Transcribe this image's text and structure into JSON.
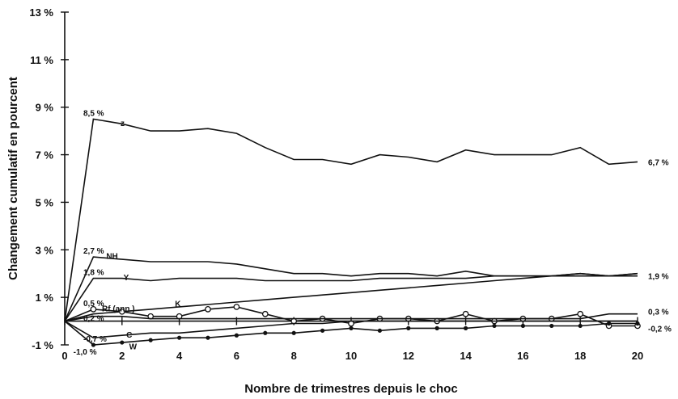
{
  "chart_data": {
    "type": "line",
    "xlabel": "Nombre de trimestres depuis le choc",
    "ylabel": "Changement cumulatif en pourcent",
    "xlim": [
      0,
      20
    ],
    "ylim": [
      -1,
      13
    ],
    "x_ticks": [
      0,
      2,
      4,
      6,
      8,
      10,
      12,
      14,
      16,
      18,
      20
    ],
    "y_ticks": [
      -1,
      1,
      3,
      5,
      7,
      9,
      11,
      13
    ],
    "y_tick_labels": [
      "-1 %",
      "1 %",
      "3 %",
      "5 %",
      "7 %",
      "9 %",
      "11 %",
      "13 %"
    ],
    "x": [
      0,
      1,
      2,
      3,
      4,
      5,
      6,
      7,
      8,
      9,
      10,
      11,
      12,
      13,
      14,
      15,
      16,
      17,
      18,
      19,
      20
    ],
    "grid": false,
    "series": [
      {
        "name": "z",
        "marker": "none",
        "values": [
          0,
          8.5,
          8.3,
          8.0,
          8.0,
          8.1,
          7.9,
          7.3,
          6.8,
          6.8,
          6.6,
          7.0,
          6.9,
          6.7,
          7.2,
          7.0,
          7.0,
          7.0,
          7.3,
          6.6,
          6.7
        ]
      },
      {
        "name": "NH",
        "marker": "none",
        "values": [
          0,
          2.7,
          2.6,
          2.5,
          2.5,
          2.5,
          2.4,
          2.2,
          2.0,
          2.0,
          1.9,
          2.0,
          2.0,
          1.9,
          2.1,
          1.9,
          1.9,
          1.9,
          2.0,
          1.9,
          1.9
        ]
      },
      {
        "name": "Y",
        "marker": "none",
        "values": [
          0,
          1.8,
          1.8,
          1.7,
          1.8,
          1.8,
          1.8,
          1.7,
          1.7,
          1.7,
          1.7,
          1.8,
          1.8,
          1.8,
          1.8,
          1.9,
          1.9,
          1.9,
          2.0,
          1.9,
          2.0
        ]
      },
      {
        "name": "K",
        "marker": "none",
        "values": [
          0,
          0.3,
          0.4,
          0.5,
          0.6,
          0.7,
          0.8,
          0.9,
          1.0,
          1.1,
          1.2,
          1.3,
          1.4,
          1.5,
          1.6,
          1.7,
          1.8,
          1.9,
          1.9,
          1.9,
          2.0
        ]
      },
      {
        "name": "Rf (ann.)",
        "marker": "open-circle",
        "values": [
          0,
          0.5,
          0.4,
          0.2,
          0.2,
          0.5,
          0.6,
          0.3,
          0.0,
          0.1,
          -0.1,
          0.1,
          0.1,
          0.0,
          0.3,
          0.0,
          0.1,
          0.1,
          0.3,
          -0.2,
          -0.2
        ]
      },
      {
        "name": "",
        "marker": "none",
        "values": [
          0,
          0.2,
          0.2,
          0.1,
          0.1,
          0.1,
          0.1,
          0.1,
          0.1,
          0.1,
          0.1,
          0.1,
          0.1,
          0.1,
          0.1,
          0.1,
          0.1,
          0.1,
          0.1,
          0.3,
          0.3
        ]
      },
      {
        "name": "C",
        "marker": "none",
        "values": [
          0,
          -0.7,
          -0.6,
          -0.5,
          -0.5,
          -0.4,
          -0.3,
          -0.2,
          -0.1,
          -0.1,
          0.0,
          0.0,
          0.0,
          0.0,
          0.0,
          0.0,
          0.0,
          0.0,
          0.0,
          0.0,
          0.0
        ]
      },
      {
        "name": "W",
        "marker": "filled-dot",
        "values": [
          0,
          -1.0,
          -0.9,
          -0.8,
          -0.7,
          -0.7,
          -0.6,
          -0.5,
          -0.5,
          -0.4,
          -0.3,
          -0.4,
          -0.3,
          -0.3,
          -0.3,
          -0.2,
          -0.2,
          -0.2,
          -0.2,
          -0.1,
          -0.1
        ]
      }
    ],
    "annotations": [
      {
        "text": "8,5 %",
        "x": 1,
        "y": 8.5
      },
      {
        "text": "2,7 %",
        "x": 1,
        "y": 2.7
      },
      {
        "text": "1,8 %",
        "x": 1,
        "y": 1.8
      },
      {
        "text": "0,5 %",
        "x": 1,
        "y": 0.5
      },
      {
        "text": "0,2 %",
        "x": 1,
        "y": 0.2
      },
      {
        "text": "-0,7 %",
        "x": 1,
        "y": -0.7
      },
      {
        "text": "-1,0 %",
        "x": 1,
        "y": -1.0
      },
      {
        "text": "6,7 %",
        "x": 20,
        "y": 6.7
      },
      {
        "text": "1,9 %",
        "x": 20,
        "y": 1.9
      },
      {
        "text": "0,3 %",
        "x": 20,
        "y": 0.3
      },
      {
        "text": "-0,2 %",
        "x": 20,
        "y": -0.2
      }
    ]
  }
}
